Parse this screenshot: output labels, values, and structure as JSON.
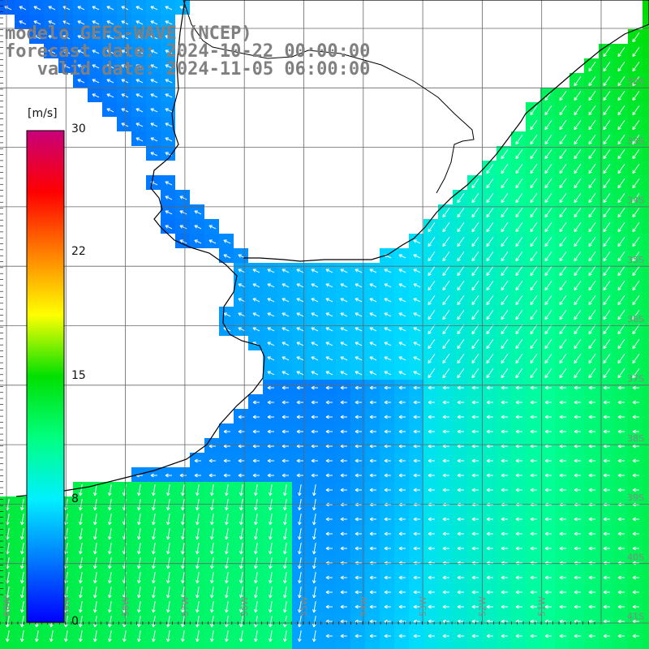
{
  "header": {
    "line1": "modelo GEFS-WAVE (NCEP)",
    "line2": "forecast date: 2024-10-22 00:00:00",
    "line3": "   valid date: 2024-11-05 06:00:00"
  },
  "colorbar": {
    "unit": "[m/s]",
    "ticks": [
      "30",
      "22",
      "15",
      "8",
      "0"
    ],
    "colors": [
      "#0000ff",
      "#0078ff",
      "#00f0ff",
      "#00ff80",
      "#00e000",
      "#ffff00",
      "#ff8000",
      "#ff0000",
      "#c8007a"
    ]
  },
  "map": {
    "lat_labels": [
      "32S",
      "33S",
      "34S",
      "35S",
      "36S",
      "37S",
      "38S",
      "39S",
      "40S",
      "41S"
    ],
    "lon_labels": [
      "60W",
      "59W",
      "58W",
      "57W",
      "56W",
      "55W",
      "54W",
      "53W",
      "52W",
      "51W"
    ],
    "colors": {
      "land": "#ffffff",
      "grid": "#000000",
      "coast": "#000000",
      "arrow": "#ffffff"
    }
  }
}
